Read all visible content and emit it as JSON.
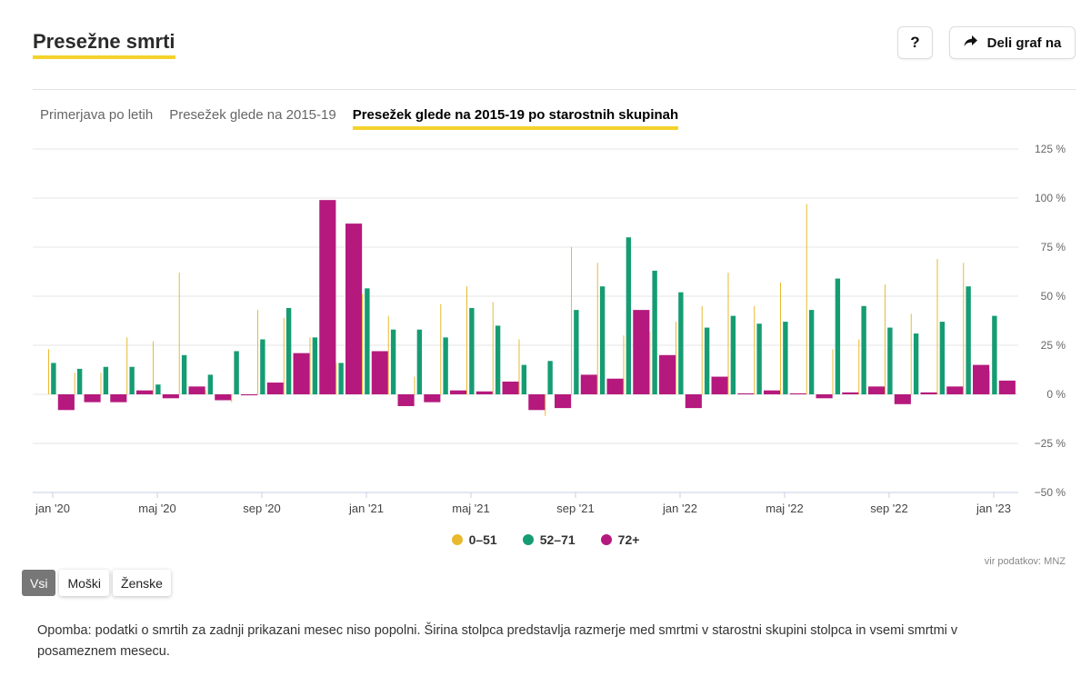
{
  "header": {
    "title": "Presežne smrti",
    "help_label": "?",
    "share_label": "Deli graf na"
  },
  "tabs": [
    {
      "label": "Primerjava po letih",
      "active": false
    },
    {
      "label": "Presežek glede na 2015-19",
      "active": false
    },
    {
      "label": "Presežek glede na 2015-19 po starostnih skupinah",
      "active": true
    }
  ],
  "legend": [
    {
      "label": "0–51",
      "color": "#e8b92e"
    },
    {
      "label": "52–71",
      "color": "#169c73"
    },
    {
      "label": "72+",
      "color": "#b5197d"
    }
  ],
  "source": "vir podatkov: MNZ",
  "filters": [
    {
      "label": "Vsi",
      "active": true
    },
    {
      "label": "Moški",
      "active": false
    },
    {
      "label": "Ženske",
      "active": false
    }
  ],
  "note": "Opomba: podatki o smrtih za zadnji prikazani mesec niso popolni. Širina stolpca predstavlja razmerje med smrtmi v starostni skupini stolpca in vsemi smrtmi v posameznem mesecu.",
  "chart_data": {
    "type": "bar",
    "ylim": [
      -50,
      125
    ],
    "yticks": [
      -50,
      -25,
      0,
      25,
      50,
      75,
      100,
      125
    ],
    "ytick_labels": [
      "−50 %",
      "−25 %",
      "0 %",
      "25 %",
      "50 %",
      "75 %",
      "100 %",
      "125 %"
    ],
    "categories": [
      "jan '20",
      "feb '20",
      "mar '20",
      "apr '20",
      "maj '20",
      "jun '20",
      "jul '20",
      "avg '20",
      "sep '20",
      "okt '20",
      "nov '20",
      "dec '20",
      "jan '21",
      "feb '21",
      "mar '21",
      "apr '21",
      "maj '21",
      "jun '21",
      "jul '21",
      "avg '21",
      "sep '21",
      "okt '21",
      "nov '21",
      "dec '21",
      "jan '22",
      "feb '22",
      "mar '22",
      "apr '22",
      "maj '22",
      "jun '22",
      "jul '22",
      "avg '22",
      "sep '22",
      "okt '22",
      "nov '22",
      "dec '22",
      "jan '23"
    ],
    "xtick_labels": [
      {
        "index": 0,
        "label": "jan '20"
      },
      {
        "index": 4,
        "label": "maj '20"
      },
      {
        "index": 8,
        "label": "sep '20"
      },
      {
        "index": 12,
        "label": "jan '21"
      },
      {
        "index": 16,
        "label": "maj '21"
      },
      {
        "index": 20,
        "label": "sep '21"
      },
      {
        "index": 24,
        "label": "jan '22"
      },
      {
        "index": 28,
        "label": "maj '22"
      },
      {
        "index": 32,
        "label": "sep '22"
      },
      {
        "index": 36,
        "label": "jan '23"
      }
    ],
    "series": [
      {
        "name": "0–51",
        "color": "#e8b92e",
        "width_share": 0.04,
        "values": [
          23,
          11,
          11,
          29,
          27,
          62,
          2,
          -4,
          43,
          39,
          29,
          16,
          51,
          40,
          9,
          46,
          55,
          47,
          28,
          -11,
          75,
          67,
          30,
          32,
          37,
          45,
          62,
          45,
          57,
          97,
          23,
          28,
          56,
          41,
          69,
          67,
          12
        ]
      },
      {
        "name": "52–71",
        "color": "#169c73",
        "width_share": 0.22,
        "values": [
          16,
          13,
          14,
          14,
          5,
          20,
          10,
          22,
          28,
          44,
          29,
          16,
          54,
          33,
          33,
          29,
          44,
          35,
          15,
          17,
          43,
          55,
          80,
          63,
          52,
          34,
          40,
          36,
          37,
          43,
          59,
          45,
          34,
          31,
          37,
          55,
          40
        ]
      },
      {
        "name": "72+",
        "color": "#b5197d",
        "width_share": 0.74,
        "values": [
          -8,
          -4,
          -4,
          2,
          -2,
          4,
          -3,
          -0.5,
          6,
          21,
          99,
          87,
          22,
          -6,
          -4,
          2,
          1.5,
          6.5,
          -8,
          -7,
          10,
          8,
          43,
          20,
          -7,
          9,
          0.5,
          2,
          0.5,
          -2,
          1,
          4,
          -5,
          1,
          4,
          15,
          7
        ]
      }
    ]
  }
}
